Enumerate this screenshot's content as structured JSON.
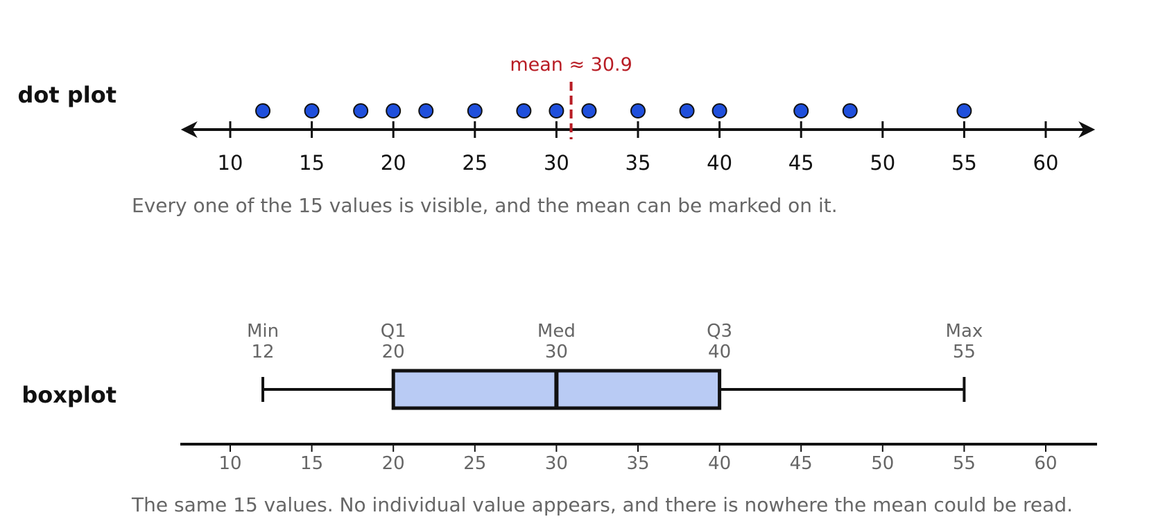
{
  "chart_data": [
    {
      "type": "scatter",
      "panel": "dot plot",
      "row_label": "dot plot",
      "values": [
        12,
        15,
        18,
        20,
        22,
        25,
        28,
        30,
        32,
        35,
        38,
        40,
        45,
        48,
        55
      ],
      "xlim": [
        10,
        60
      ],
      "ticks": [
        "10",
        "15",
        "20",
        "25",
        "30",
        "35",
        "40",
        "45",
        "50",
        "55",
        "60"
      ],
      "mean": 30.9,
      "mean_label": "mean ≈ 30.9",
      "caption": "Every one of the 15 values is visible, and the mean can be marked on it."
    },
    {
      "type": "boxplot",
      "panel": "boxplot",
      "row_label": "boxplot",
      "stats": [
        {
          "label": "Min",
          "value": 12
        },
        {
          "label": "Q1",
          "value": 20
        },
        {
          "label": "Med",
          "value": 30
        },
        {
          "label": "Q3",
          "value": 40
        },
        {
          "label": "Max",
          "value": 55
        }
      ],
      "xlim": [
        10,
        60
      ],
      "ticks": [
        "10",
        "15",
        "20",
        "25",
        "30",
        "35",
        "40",
        "45",
        "50",
        "55",
        "60"
      ],
      "caption": "The same 15 values. No individual value appears, and there is nowhere the mean could be read."
    }
  ],
  "colors": {
    "dot_fill": "#1f4fdc",
    "dot_stroke": "#111111",
    "mean_line": "#b81c24",
    "box_fill": "#b9cbf4",
    "axis": "#111111",
    "muted_text": "#666666"
  }
}
